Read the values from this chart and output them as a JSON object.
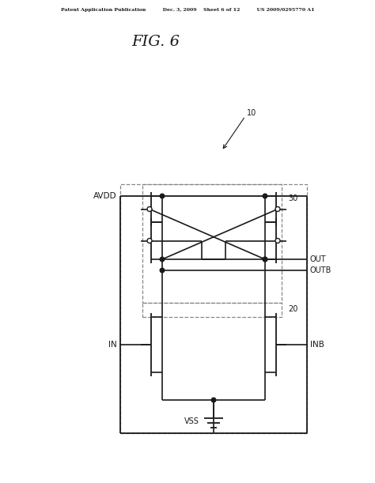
{
  "bg_color": "#ffffff",
  "line_color": "#1a1a1a",
  "dash_color": "#888888",
  "header": "Patent Application Publication          Dec. 3, 2009    Sheet 6 of 12          US 2009/0295770 A1",
  "title": "FIG. 6",
  "lbl_10": "10",
  "lbl_20": "20",
  "lbl_30": "30",
  "lbl_avdd": "AVDD",
  "lbl_vss": "VSS",
  "lbl_in": "IN",
  "lbl_out": "OUT",
  "lbl_outb": "OUTB",
  "lbl_inb": "INB"
}
